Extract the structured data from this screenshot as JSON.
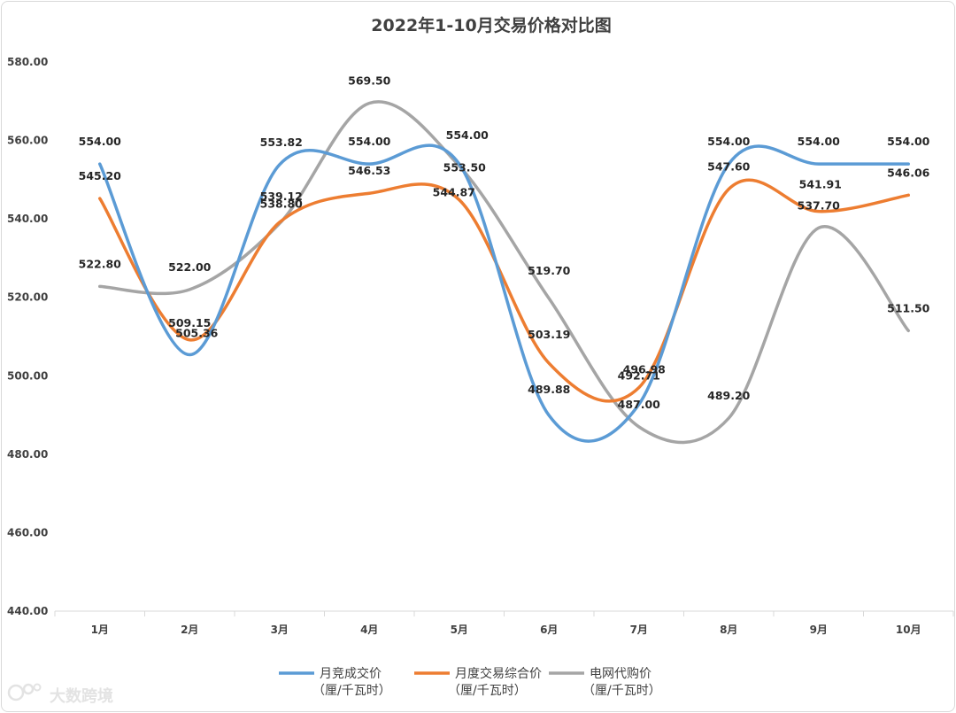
{
  "chart_data": {
    "type": "line",
    "title": "2022年1-10月交易价格对比图",
    "categories": [
      "1月",
      "2月",
      "3月",
      "4月",
      "5月",
      "6月",
      "7月",
      "8月",
      "9月",
      "10月"
    ],
    "ylim": [
      440,
      580
    ],
    "ytick_step": 20,
    "ytick_labels": [
      "440.00",
      "460.00",
      "480.00",
      "500.00",
      "520.00",
      "540.00",
      "560.00",
      "580.00"
    ],
    "grid": false,
    "legend_position": "bottom",
    "series": [
      {
        "name": "月竞成交价",
        "unit": "（厘/千瓦时）",
        "color": "#5b9bd5",
        "values": [
          554.0,
          505.36,
          553.82,
          554.0,
          554.0,
          489.88,
          492.71,
          554.0,
          554.0,
          554.0
        ],
        "labels": [
          "554.00",
          "505.36",
          "553.82",
          "554.00",
          "554.00",
          "489.88",
          "492.71",
          "554.00",
          "554.00",
          "554.00"
        ]
      },
      {
        "name": "月度交易综合价",
        "unit": "（厘/千瓦时）",
        "color": "#ed7d31",
        "values": [
          545.2,
          509.15,
          539.12,
          546.53,
          544.87,
          503.19,
          496.98,
          547.6,
          541.91,
          546.06
        ],
        "labels": [
          "545.20",
          "509.15",
          "539.12",
          "546.53",
          "544.87",
          "503.19",
          "496.98",
          "547.60",
          "541.91",
          "546.06"
        ]
      },
      {
        "name": "电网代购价",
        "unit": "（厘/千瓦时）",
        "color": "#a5a5a5",
        "values": [
          522.8,
          522.0,
          538.8,
          569.5,
          553.5,
          519.7,
          487.0,
          489.2,
          537.7,
          511.5
        ],
        "labels": [
          "522.80",
          "522.00",
          "538.80",
          "569.50",
          "553.50",
          "519.70",
          "487.00",
          "489.20",
          "537.70",
          "511.50"
        ]
      }
    ]
  },
  "watermark": {
    "text": "大数跨境"
  }
}
